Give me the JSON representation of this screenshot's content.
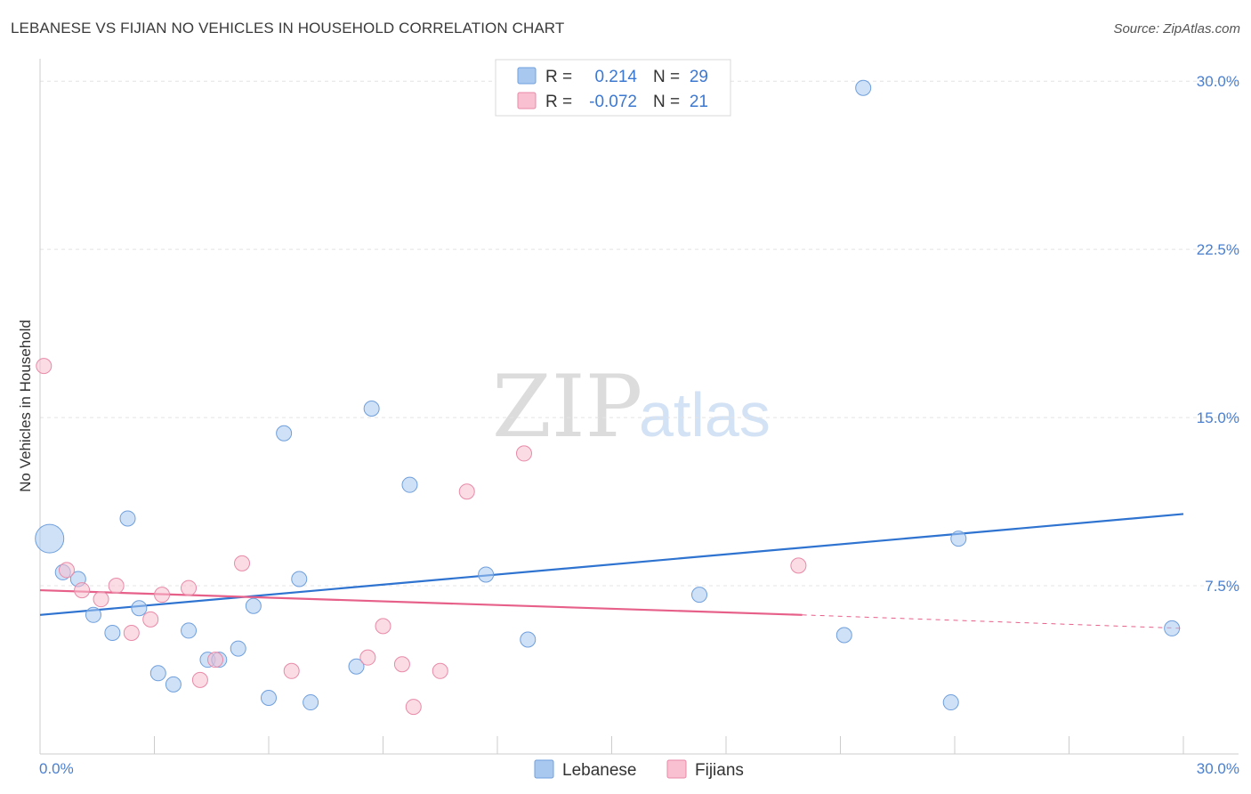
{
  "title": "LEBANESE VS FIJIAN NO VEHICLES IN HOUSEHOLD CORRELATION CHART",
  "source": "Source: ZipAtlas.com",
  "watermark": {
    "zip": "ZIP",
    "atlas": "atlas"
  },
  "legend": {
    "rows": [
      {
        "r_label": "R =",
        "r_value": "0.214",
        "n_label": "N =",
        "n_value": "29",
        "color": "#a8c8f0",
        "stroke": "#6f9fdc"
      },
      {
        "r_label": "R =",
        "r_value": "-0.072",
        "n_label": "N =",
        "n_value": "21",
        "color": "#f8c0d0",
        "stroke": "#e88aa8"
      }
    ]
  },
  "bottom_legend": [
    {
      "label": "Lebanese",
      "color": "#a8c8f0",
      "stroke": "#6f9fdc"
    },
    {
      "label": "Fijians",
      "color": "#f8c0d0",
      "stroke": "#e88aa8"
    }
  ],
  "chart_data": {
    "type": "scatter",
    "title": "LEBANESE VS FIJIAN NO VEHICLES IN HOUSEHOLD CORRELATION CHART",
    "xlabel": "",
    "ylabel": "No Vehicles in Household",
    "xlim": [
      0,
      30
    ],
    "ylim": [
      0,
      31
    ],
    "x_tick_labels": [
      {
        "value": 0,
        "label": "0.0%"
      },
      {
        "value": 30,
        "label": "30.0%"
      }
    ],
    "y_tick_labels": [
      {
        "value": 7.5,
        "label": "7.5%"
      },
      {
        "value": 15,
        "label": "15.0%"
      },
      {
        "value": 22.5,
        "label": "22.5%"
      },
      {
        "value": 30,
        "label": "30.0%"
      }
    ],
    "grid": true,
    "legend_position": "top-center",
    "series": [
      {
        "name": "Lebanese",
        "color": "#6f9fdc",
        "fill": "#a8c8f0",
        "line_color": "#2f73d0",
        "trend": {
          "x": [
            0,
            30
          ],
          "y": [
            6.2,
            10.7
          ]
        },
        "points": [
          {
            "x": 0.25,
            "y": 9.6,
            "big": true
          },
          {
            "x": 0.6,
            "y": 8.1
          },
          {
            "x": 1.0,
            "y": 7.8
          },
          {
            "x": 1.4,
            "y": 6.2
          },
          {
            "x": 1.9,
            "y": 5.4
          },
          {
            "x": 2.3,
            "y": 10.5
          },
          {
            "x": 2.6,
            "y": 6.5
          },
          {
            "x": 3.1,
            "y": 3.6
          },
          {
            "x": 3.5,
            "y": 3.1
          },
          {
            "x": 3.9,
            "y": 5.5
          },
          {
            "x": 4.4,
            "y": 4.2
          },
          {
            "x": 4.7,
            "y": 4.2
          },
          {
            "x": 5.2,
            "y": 4.7
          },
          {
            "x": 5.6,
            "y": 6.6
          },
          {
            "x": 6.0,
            "y": 2.5
          },
          {
            "x": 6.4,
            "y": 14.3
          },
          {
            "x": 6.8,
            "y": 7.8
          },
          {
            "x": 7.1,
            "y": 2.3
          },
          {
            "x": 8.3,
            "y": 3.9
          },
          {
            "x": 8.7,
            "y": 15.4
          },
          {
            "x": 9.7,
            "y": 12.0
          },
          {
            "x": 11.7,
            "y": 8.0
          },
          {
            "x": 12.8,
            "y": 5.1
          },
          {
            "x": 17.3,
            "y": 7.1
          },
          {
            "x": 21.1,
            "y": 5.3
          },
          {
            "x": 21.6,
            "y": 29.7
          },
          {
            "x": 23.9,
            "y": 2.3
          },
          {
            "x": 24.1,
            "y": 9.6
          },
          {
            "x": 29.7,
            "y": 5.6
          }
        ]
      },
      {
        "name": "Fijians",
        "color": "#e88aa8",
        "fill": "#f8c0d0",
        "line_color": "#e6608a",
        "trend": {
          "x": [
            0,
            20
          ],
          "y": [
            7.3,
            6.2
          ]
        },
        "trend_extension": {
          "x": [
            20,
            30
          ],
          "y": [
            6.2,
            5.6
          ]
        },
        "points": [
          {
            "x": 0.1,
            "y": 17.3
          },
          {
            "x": 0.7,
            "y": 8.2
          },
          {
            "x": 1.1,
            "y": 7.3
          },
          {
            "x": 1.6,
            "y": 6.9
          },
          {
            "x": 2.0,
            "y": 7.5
          },
          {
            "x": 2.4,
            "y": 5.4
          },
          {
            "x": 2.9,
            "y": 6.0
          },
          {
            "x": 3.2,
            "y": 7.1
          },
          {
            "x": 3.9,
            "y": 7.4
          },
          {
            "x": 4.2,
            "y": 3.3
          },
          {
            "x": 4.6,
            "y": 4.2
          },
          {
            "x": 5.3,
            "y": 8.5
          },
          {
            "x": 6.6,
            "y": 3.7
          },
          {
            "x": 8.6,
            "y": 4.3
          },
          {
            "x": 9.0,
            "y": 5.7
          },
          {
            "x": 9.5,
            "y": 4.0
          },
          {
            "x": 9.8,
            "y": 2.1
          },
          {
            "x": 10.5,
            "y": 3.7
          },
          {
            "x": 11.2,
            "y": 11.7
          },
          {
            "x": 12.7,
            "y": 13.4
          },
          {
            "x": 19.9,
            "y": 8.4
          }
        ]
      }
    ]
  }
}
